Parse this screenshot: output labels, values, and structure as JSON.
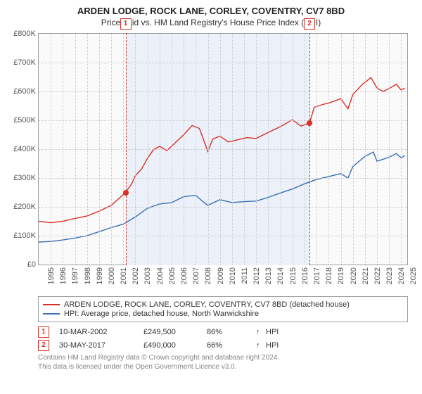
{
  "title": "ARDEN LODGE, ROCK LANE, CORLEY, COVENTRY, CV7 8BD",
  "subtitle": "Price paid vs. HM Land Registry's House Price Index (HPI)",
  "chart": {
    "type": "line",
    "background_color": "#fafafa",
    "shade_color": "#ebf0f9",
    "grid_color": "#c9c9c9",
    "axis_color": "#9aa0a6",
    "x_years": [
      "1995",
      "1996",
      "1997",
      "1998",
      "1999",
      "2000",
      "2001",
      "2002",
      "2003",
      "2004",
      "2005",
      "2006",
      "2007",
      "2008",
      "2009",
      "2010",
      "2011",
      "2012",
      "2013",
      "2014",
      "2015",
      "2016",
      "2017",
      "2018",
      "2019",
      "2020",
      "2021",
      "2022",
      "2023",
      "2024",
      "2025"
    ],
    "xlim": [
      1995,
      2025.5
    ],
    "ylim": [
      0,
      800000
    ],
    "ytick_step": 100000,
    "yticks": [
      {
        "v": 0,
        "label": "£0"
      },
      {
        "v": 100000,
        "label": "£100K"
      },
      {
        "v": 200000,
        "label": "£200K"
      },
      {
        "v": 300000,
        "label": "£300K"
      },
      {
        "v": 400000,
        "label": "£400K"
      },
      {
        "v": 500000,
        "label": "£500K"
      },
      {
        "v": 600000,
        "label": "£600K"
      },
      {
        "v": 700000,
        "label": "£700K"
      },
      {
        "v": 800000,
        "label": "£800K"
      }
    ],
    "series": [
      {
        "name": "price_paid",
        "color": "#d93025",
        "line_width": 1.4,
        "legend": "ARDEN LODGE, ROCK LANE, CORLEY, COVENTRY, CV7 8BD (detached house)",
        "points": [
          [
            1995,
            150000
          ],
          [
            1996,
            145000
          ],
          [
            1997,
            150000
          ],
          [
            1998,
            160000
          ],
          [
            1999,
            168000
          ],
          [
            2000,
            185000
          ],
          [
            2001,
            205000
          ],
          [
            2002.19,
            249500
          ],
          [
            2002.7,
            280000
          ],
          [
            2003,
            308000
          ],
          [
            2003.5,
            330000
          ],
          [
            2004,
            368000
          ],
          [
            2004.5,
            398000
          ],
          [
            2005,
            410000
          ],
          [
            2005.6,
            395000
          ],
          [
            2006,
            410000
          ],
          [
            2007,
            450000
          ],
          [
            2007.7,
            482000
          ],
          [
            2008.3,
            472000
          ],
          [
            2009,
            392000
          ],
          [
            2009.4,
            435000
          ],
          [
            2010,
            445000
          ],
          [
            2010.7,
            425000
          ],
          [
            2011.4,
            432000
          ],
          [
            2012.2,
            440000
          ],
          [
            2013,
            437000
          ],
          [
            2014,
            458000
          ],
          [
            2015,
            478000
          ],
          [
            2016,
            502000
          ],
          [
            2016.7,
            480000
          ],
          [
            2017.41,
            490000
          ],
          [
            2017.8,
            545000
          ],
          [
            2018.5,
            555000
          ],
          [
            2019,
            560000
          ],
          [
            2020,
            575000
          ],
          [
            2020.6,
            540000
          ],
          [
            2021,
            590000
          ],
          [
            2021.8,
            625000
          ],
          [
            2022.5,
            648000
          ],
          [
            2023,
            612000
          ],
          [
            2023.5,
            600000
          ],
          [
            2024,
            610000
          ],
          [
            2024.6,
            625000
          ],
          [
            2025,
            605000
          ],
          [
            2025.3,
            612000
          ]
        ]
      },
      {
        "name": "hpi",
        "color": "#3b6db5",
        "line_width": 1.4,
        "legend": "HPI: Average price, detached house, North Warwickshire",
        "points": [
          [
            1995,
            78000
          ],
          [
            1996,
            80000
          ],
          [
            1997,
            85000
          ],
          [
            1998,
            92000
          ],
          [
            1999,
            100000
          ],
          [
            2000,
            114000
          ],
          [
            2001,
            128000
          ],
          [
            2002,
            140000
          ],
          [
            2003,
            165000
          ],
          [
            2004,
            195000
          ],
          [
            2005,
            210000
          ],
          [
            2006,
            215000
          ],
          [
            2007,
            235000
          ],
          [
            2008,
            240000
          ],
          [
            2008.6,
            218000
          ],
          [
            2009,
            205000
          ],
          [
            2010,
            225000
          ],
          [
            2011,
            215000
          ],
          [
            2012,
            218000
          ],
          [
            2013,
            220000
          ],
          [
            2014,
            233000
          ],
          [
            2015,
            248000
          ],
          [
            2016,
            262000
          ],
          [
            2017,
            280000
          ],
          [
            2018,
            295000
          ],
          [
            2019,
            305000
          ],
          [
            2020,
            315000
          ],
          [
            2020.6,
            300000
          ],
          [
            2021,
            340000
          ],
          [
            2022,
            375000
          ],
          [
            2022.7,
            390000
          ],
          [
            2023,
            358000
          ],
          [
            2024,
            372000
          ],
          [
            2024.6,
            385000
          ],
          [
            2025,
            370000
          ],
          [
            2025.3,
            378000
          ]
        ]
      }
    ],
    "markers": [
      {
        "n": "1",
        "year": 2002.19,
        "value": 249500,
        "color": "#d93025"
      },
      {
        "n": "2",
        "year": 2017.41,
        "value": 490000,
        "color": "#d93025"
      }
    ]
  },
  "transactions": [
    {
      "n": "1",
      "date": "10-MAR-2002",
      "price": "£249,500",
      "pct": "86%",
      "arrow": "↑",
      "rel": "HPI",
      "color": "#d93025"
    },
    {
      "n": "2",
      "date": "30-MAY-2017",
      "price": "£490,000",
      "pct": "66%",
      "arrow": "↑",
      "rel": "HPI",
      "color": "#d93025"
    }
  ],
  "attribution": {
    "line1": "Contains HM Land Registry data © Crown copyright and database right 2024.",
    "line2": "This data is licensed under the Open Government Licence v3.0."
  }
}
